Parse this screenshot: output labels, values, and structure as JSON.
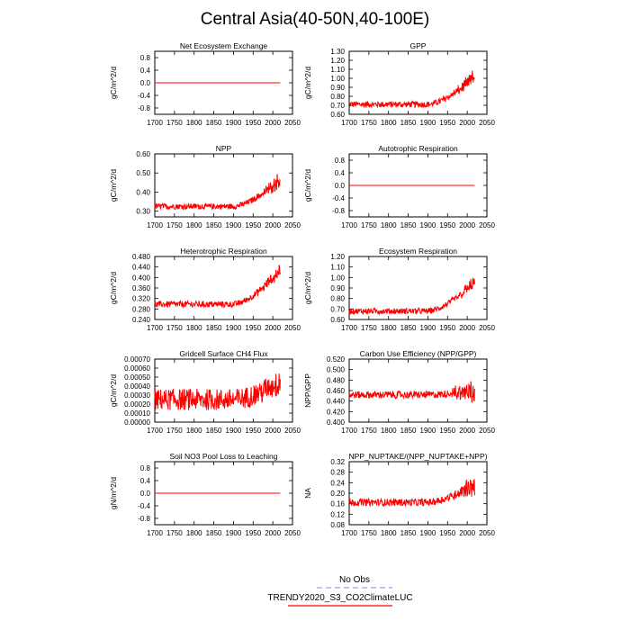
{
  "title": "Central Asia(40-50N,40-100E)",
  "legend": {
    "items": [
      {
        "label": "No Obs",
        "color": "#9999ff",
        "style": "dashed"
      },
      {
        "label": "TRENDY2020_S3_CO2ClimateLUC",
        "color": "#ff0000",
        "style": "solid"
      }
    ]
  },
  "chart_data": [
    {
      "type": "line",
      "title": "Net Ecosystem Exchange",
      "ylabel": "gC/m^2/d",
      "xlim": [
        1700,
        2050
      ],
      "xticks": [
        1700,
        1750,
        1800,
        1850,
        1900,
        1950,
        2000,
        2050
      ],
      "ylim": [
        -1.0,
        1.0
      ],
      "yticks": [
        "0.8",
        "0.4",
        "0.0",
        "-0.4",
        "-0.8"
      ],
      "series": [
        {
          "name": "TRENDY2020_S3_CO2ClimateLUC",
          "x_range": [
            1700,
            2019
          ],
          "values": {
            "start": 0.0,
            "end": 0.0,
            "noise": 0.0,
            "rise": 0.0,
            "recent_var": 0.0
          }
        }
      ]
    },
    {
      "type": "line",
      "title": "GPP",
      "ylabel": "gC/m^2/d",
      "xlim": [
        1700,
        2050
      ],
      "xticks": [
        1700,
        1750,
        1800,
        1850,
        1900,
        1950,
        2000,
        2050
      ],
      "ylim": [
        0.6,
        1.3
      ],
      "yticks": [
        "1.30",
        "1.20",
        "1.10",
        "1.00",
        "0.90",
        "0.80",
        "0.70",
        "0.60"
      ],
      "series": [
        {
          "name": "TRENDY2020_S3_CO2ClimateLUC",
          "x_range": [
            1700,
            2019
          ],
          "values": {
            "start": 0.71,
            "end": 1.02,
            "noise": 0.035,
            "rise": 0.3,
            "recent_var": 0.08
          }
        }
      ]
    },
    {
      "type": "line",
      "title": "NPP",
      "ylabel": "gC/m^2/d",
      "xlim": [
        1700,
        2050
      ],
      "xticks": [
        1700,
        1750,
        1800,
        1850,
        1900,
        1950,
        2000,
        2050
      ],
      "ylim": [
        0.27,
        0.6
      ],
      "yticks": [
        "0.60",
        "0.50",
        "0.40",
        "0.30"
      ],
      "series": [
        {
          "name": "TRENDY2020_S3_CO2ClimateLUC",
          "x_range": [
            1700,
            2019
          ],
          "values": {
            "start": 0.325,
            "end": 0.47,
            "noise": 0.015,
            "rise": 0.15,
            "recent_var": 0.04
          }
        }
      ]
    },
    {
      "type": "line",
      "title": "Autotrophic Respiration",
      "ylabel": "gC/m^2/d",
      "xlim": [
        1700,
        2050
      ],
      "xticks": [
        1700,
        1750,
        1800,
        1850,
        1900,
        1950,
        2000,
        2050
      ],
      "ylim": [
        -1.0,
        1.0
      ],
      "yticks": [
        "0.8",
        "0.4",
        "0.0",
        "-0.4",
        "-0.8"
      ],
      "series": [
        {
          "name": "TRENDY2020_S3_CO2ClimateLUC",
          "x_range": [
            1700,
            2019
          ],
          "values": {
            "start": 0.0,
            "end": 0.0,
            "noise": 0.0,
            "rise": 0.0,
            "recent_var": 0.0
          }
        }
      ]
    },
    {
      "type": "line",
      "title": "Heterotrophic Respiration",
      "ylabel": "gC/m^2/d",
      "xlim": [
        1700,
        2050
      ],
      "xticks": [
        1700,
        1750,
        1800,
        1850,
        1900,
        1950,
        2000,
        2050
      ],
      "ylim": [
        0.24,
        0.48
      ],
      "yticks": [
        "0.480",
        "0.440",
        "0.400",
        "0.360",
        "0.320",
        "0.280",
        "0.240"
      ],
      "series": [
        {
          "name": "TRENDY2020_S3_CO2ClimateLUC",
          "x_range": [
            1700,
            2019
          ],
          "values": {
            "start": 0.298,
            "end": 0.43,
            "noise": 0.012,
            "rise": 0.12,
            "recent_var": 0.025
          }
        }
      ]
    },
    {
      "type": "line",
      "title": "Ecosystem Respiration",
      "ylabel": "gC/m^2/d",
      "xlim": [
        1700,
        2050
      ],
      "xticks": [
        1700,
        1750,
        1800,
        1850,
        1900,
        1950,
        2000,
        2050
      ],
      "ylim": [
        0.6,
        1.2
      ],
      "yticks": [
        "1.20",
        "1.10",
        "1.00",
        "0.90",
        "0.80",
        "0.70",
        "0.60"
      ],
      "series": [
        {
          "name": "TRENDY2020_S3_CO2ClimateLUC",
          "x_range": [
            1700,
            2019
          ],
          "values": {
            "start": 0.68,
            "end": 0.96,
            "noise": 0.028,
            "rise": 0.26,
            "recent_var": 0.06
          }
        }
      ]
    },
    {
      "type": "line",
      "title": "Gridcell Surface CH4 Flux",
      "ylabel": "gC/m^2/d",
      "xlim": [
        1700,
        2050
      ],
      "xticks": [
        1700,
        1750,
        1800,
        1850,
        1900,
        1950,
        2000,
        2050
      ],
      "ylim": [
        0.0,
        0.0007
      ],
      "yticks": [
        "0.00070",
        "0.00060",
        "0.00050",
        "0.00040",
        "0.00030",
        "0.00020",
        "0.00010",
        "0.00000"
      ],
      "series": [
        {
          "name": "TRENDY2020_S3_CO2ClimateLUC",
          "x_range": [
            1700,
            2019
          ],
          "values": {
            "start": 0.00025,
            "end": 0.00045,
            "noise": 0.00012,
            "rise": 0.00012,
            "recent_var": 0.0001
          }
        }
      ]
    },
    {
      "type": "line",
      "title": "Carbon Use Efficiency (NPP/GPP)",
      "ylabel": "NPP/GPP",
      "xlim": [
        1700,
        2050
      ],
      "xticks": [
        1700,
        1750,
        1800,
        1850,
        1900,
        1950,
        2000,
        2050
      ],
      "ylim": [
        0.4,
        0.52
      ],
      "yticks": [
        "0.520",
        "0.500",
        "0.480",
        "0.460",
        "0.440",
        "0.420",
        "0.400"
      ],
      "series": [
        {
          "name": "TRENDY2020_S3_CO2ClimateLUC",
          "x_range": [
            1700,
            2019
          ],
          "values": {
            "start": 0.452,
            "end": 0.46,
            "noise": 0.007,
            "rise": 0.0,
            "recent_var": 0.03
          }
        }
      ]
    },
    {
      "type": "line",
      "title": "Soil NO3 Pool Loss to Leaching",
      "ylabel": "gN/m^2/d",
      "xlim": [
        1700,
        2050
      ],
      "xticks": [
        1700,
        1750,
        1800,
        1850,
        1900,
        1950,
        2000,
        2050
      ],
      "ylim": [
        -1.0,
        1.0
      ],
      "yticks": [
        "0.8",
        "0.4",
        "0.0",
        "-0.4",
        "-0.8"
      ],
      "series": [
        {
          "name": "TRENDY2020_S3_CO2ClimateLUC",
          "x_range": [
            1700,
            2019
          ],
          "values": {
            "start": 0.0,
            "end": 0.0,
            "noise": 0.0,
            "rise": 0.0,
            "recent_var": 0.0
          }
        }
      ]
    },
    {
      "type": "line",
      "title": "NPP_NUPTAKE/(NPP_NUPTAKE+NPP)",
      "ylabel": "NA",
      "xlim": [
        1700,
        2050
      ],
      "xticks": [
        1700,
        1750,
        1800,
        1850,
        1900,
        1950,
        2000,
        2050
      ],
      "ylim": [
        0.08,
        0.32
      ],
      "yticks": [
        "0.32",
        "0.28",
        "0.24",
        "0.20",
        "0.16",
        "0.12",
        "0.08"
      ],
      "series": [
        {
          "name": "TRENDY2020_S3_CO2ClimateLUC",
          "x_range": [
            1700,
            2019
          ],
          "values": {
            "start": 0.165,
            "end": 0.235,
            "noise": 0.014,
            "rise": 0.06,
            "recent_var": 0.04
          }
        }
      ]
    }
  ]
}
